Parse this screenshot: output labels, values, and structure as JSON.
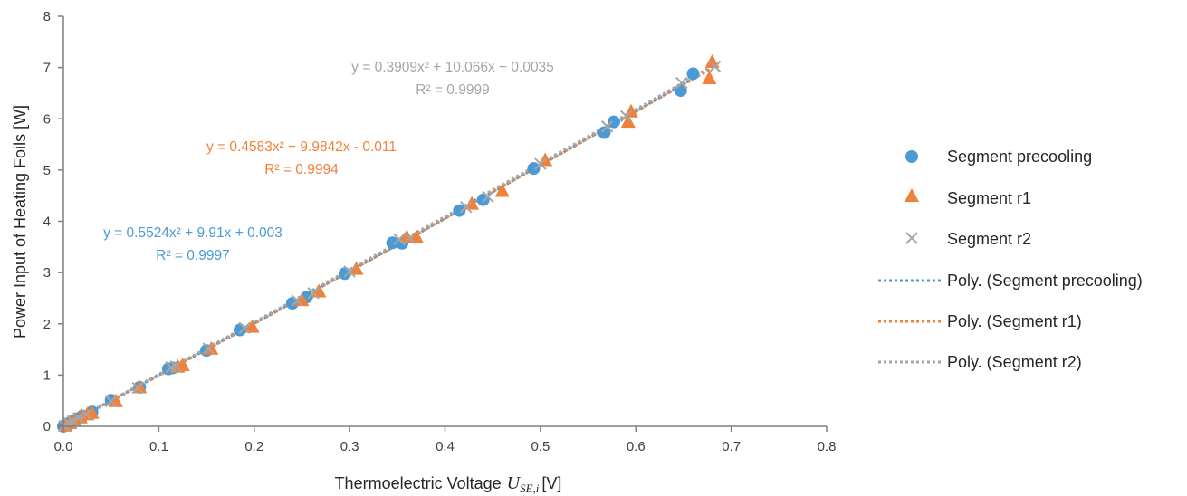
{
  "colors": {
    "precooling": "#4A9BD5",
    "r1": "#F0813A",
    "r2": "#A6A6A6",
    "axis": "#7F7F7F"
  },
  "chart_data": {
    "type": "scatter",
    "xlabel": "Thermoelectric Voltage",
    "xlabel_var": "U",
    "xlabel_sub": "SE,i",
    "xlabel_unit": "[V]",
    "ylabel": "Power Input of Heating Foils [W]",
    "xlim": [
      0,
      0.8
    ],
    "ylim": [
      0,
      8
    ],
    "xticks": [
      "0.0",
      "0.1",
      "0.2",
      "0.3",
      "0.4",
      "0.5",
      "0.6",
      "0.7",
      "0.8"
    ],
    "yticks": [
      "0",
      "1",
      "2",
      "3",
      "4",
      "5",
      "6",
      "7",
      "8"
    ],
    "grid": false,
    "legend_position": "right",
    "series": [
      {
        "name": "Segment precooling",
        "marker": "circle",
        "points": [
          [
            0.0,
            0.0
          ],
          [
            0.003,
            0.03
          ],
          [
            0.006,
            0.06
          ],
          [
            0.01,
            0.1
          ],
          [
            0.015,
            0.15
          ],
          [
            0.02,
            0.2
          ],
          [
            0.03,
            0.28
          ],
          [
            0.05,
            0.51
          ],
          [
            0.08,
            0.76
          ],
          [
            0.11,
            1.12
          ],
          [
            0.115,
            1.14
          ],
          [
            0.15,
            1.48
          ],
          [
            0.185,
            1.88
          ],
          [
            0.24,
            2.4
          ],
          [
            0.255,
            2.52
          ],
          [
            0.295,
            2.98
          ],
          [
            0.345,
            3.58
          ],
          [
            0.355,
            3.57
          ],
          [
            0.415,
            4.21
          ],
          [
            0.44,
            4.42
          ],
          [
            0.493,
            5.03
          ],
          [
            0.567,
            5.73
          ],
          [
            0.577,
            5.94
          ],
          [
            0.647,
            6.55
          ],
          [
            0.66,
            6.88
          ]
        ],
        "fit": {
          "a": 0.5524,
          "b": 9.91,
          "c": 0.003,
          "equation": "y = 0.5524x² + 9.91x + 0.003",
          "r2": "R² = 0.9997"
        }
      },
      {
        "name": "Segment r1",
        "marker": "triangle",
        "points": [
          [
            0.002,
            0.02
          ],
          [
            0.007,
            0.07
          ],
          [
            0.012,
            0.12
          ],
          [
            0.018,
            0.18
          ],
          [
            0.025,
            0.24
          ],
          [
            0.03,
            0.27
          ],
          [
            0.055,
            0.5
          ],
          [
            0.08,
            0.77
          ],
          [
            0.12,
            1.17
          ],
          [
            0.125,
            1.2
          ],
          [
            0.155,
            1.52
          ],
          [
            0.198,
            1.95
          ],
          [
            0.25,
            2.47
          ],
          [
            0.268,
            2.64
          ],
          [
            0.307,
            3.08
          ],
          [
            0.36,
            3.7
          ],
          [
            0.37,
            3.7
          ],
          [
            0.428,
            4.35
          ],
          [
            0.46,
            4.6
          ],
          [
            0.505,
            5.2
          ],
          [
            0.592,
            5.95
          ],
          [
            0.595,
            6.15
          ],
          [
            0.677,
            6.8
          ],
          [
            0.68,
            7.12
          ]
        ],
        "fit": {
          "a": 0.4583,
          "b": 9.9842,
          "c": -0.011,
          "equation": "y = 0.4583x² + 9.9842x - 0.011",
          "r2": "R² = 0.9994"
        }
      },
      {
        "name": "Segment r2",
        "marker": "cross",
        "points": [
          [
            0.001,
            0.01
          ],
          [
            0.006,
            0.06
          ],
          [
            0.01,
            0.1
          ],
          [
            0.016,
            0.16
          ],
          [
            0.024,
            0.23
          ],
          [
            0.05,
            0.49
          ],
          [
            0.078,
            0.75
          ],
          [
            0.113,
            1.15
          ],
          [
            0.118,
            1.17
          ],
          [
            0.152,
            1.52
          ],
          [
            0.19,
            1.92
          ],
          [
            0.245,
            2.45
          ],
          [
            0.262,
            2.6
          ],
          [
            0.3,
            3.02
          ],
          [
            0.352,
            3.65
          ],
          [
            0.363,
            3.67
          ],
          [
            0.422,
            4.28
          ],
          [
            0.445,
            4.48
          ],
          [
            0.5,
            5.12
          ],
          [
            0.57,
            5.85
          ],
          [
            0.59,
            6.05
          ],
          [
            0.648,
            6.7
          ],
          [
            0.683,
            7.02
          ]
        ],
        "fit": {
          "a": 0.3909,
          "b": 10.066,
          "c": 0.0035,
          "equation": "y = 0.3909x² + 10.066x + 0.0035",
          "r2": "R² = 0.9999"
        }
      }
    ],
    "trendlines": [
      {
        "name": "Poly. (Segment precooling)",
        "series": "Segment precooling"
      },
      {
        "name": "Poly. (Segment r1)",
        "series": "Segment r1"
      },
      {
        "name": "Poly. (Segment r2)",
        "series": "Segment r2"
      }
    ]
  }
}
